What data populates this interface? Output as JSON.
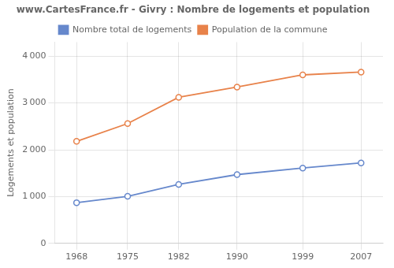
{
  "chart_data": {
    "type": "line",
    "title": "www.CartesFrance.fr - Givry : Nombre de logements et population",
    "y_label": "Logements et population",
    "x": [
      1968,
      1975,
      1982,
      1990,
      1999,
      2007
    ],
    "series": [
      {
        "name": "Nombre total de logements",
        "color": "#6688cc",
        "marker": "circle",
        "line_style": "solid",
        "values": [
          870,
          1005,
          1260,
          1470,
          1610,
          1720
        ]
      },
      {
        "name": "Population de la commune",
        "color": "#e8824a",
        "marker": "circle",
        "line_style": "solid",
        "values": [
          2180,
          2560,
          3120,
          3340,
          3600,
          3660
        ]
      }
    ],
    "xlim": [
      1965,
      2010
    ],
    "xticks": [
      1968,
      1975,
      1982,
      1990,
      1999,
      2007
    ],
    "ylim": [
      0,
      4300
    ],
    "yticks": [
      0,
      {
        "value": 1000,
        "label": "1 000"
      },
      {
        "value": 2000,
        "label": "2 000"
      },
      {
        "value": 3000,
        "label": "3 000"
      },
      {
        "value": 4000,
        "label": "4 000"
      }
    ],
    "grid": true,
    "legend": "top"
  }
}
